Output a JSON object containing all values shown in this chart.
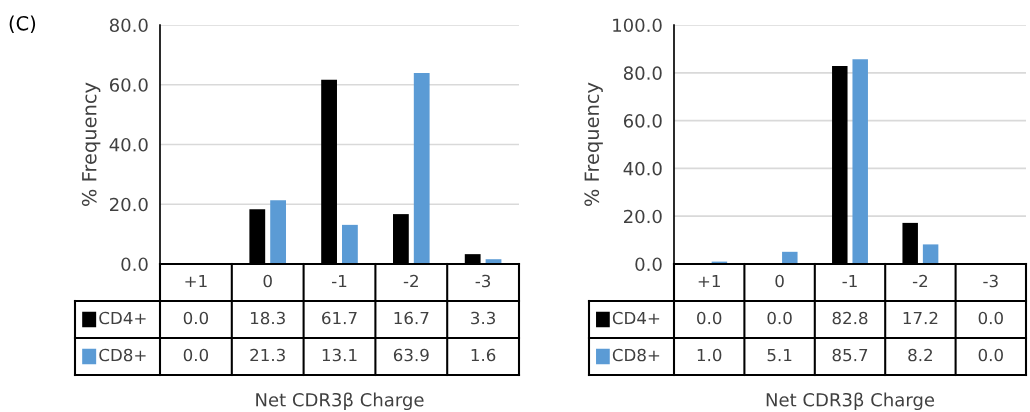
{
  "chart_data": [
    {
      "type": "bar",
      "ylabel": "% Frequency",
      "xlabel": "Net CDR3β Charge",
      "annotations": [
        "(C)"
      ],
      "categories": [
        "+1",
        "0",
        "-1",
        "-2",
        "-3"
      ],
      "ylim": [
        0,
        80
      ],
      "yticks": [
        {
          "value": 0,
          "label": "0.0"
        },
        {
          "value": 20,
          "label": "20.0"
        },
        {
          "value": 40,
          "label": "40.0"
        },
        {
          "value": 60,
          "label": "60.0"
        },
        {
          "value": 80,
          "label": "80.0"
        }
      ],
      "grid": "y",
      "legend": "bottom left",
      "series": [
        {
          "name": "CD4+",
          "color": "#000000",
          "values": [
            0.0,
            18.3,
            61.7,
            16.7,
            3.3
          ],
          "value_labels": [
            "0.0",
            "18.3",
            "61.7",
            "16.7",
            "3.3"
          ]
        },
        {
          "name": "CD8+",
          "color": "#5b9bd5",
          "values": [
            0.0,
            21.3,
            13.1,
            63.9,
            1.6
          ],
          "value_labels": [
            "0.0",
            "21.3",
            "13.1",
            "63.9",
            "1.6"
          ]
        }
      ]
    },
    {
      "type": "bar",
      "ylabel": "% Frequency",
      "xlabel": "Net CDR3β Charge",
      "categories": [
        "+1",
        "0",
        "-1",
        "-2",
        "-3"
      ],
      "ylim": [
        0,
        100
      ],
      "yticks": [
        {
          "value": 0,
          "label": "0.0"
        },
        {
          "value": 20,
          "label": "20.0"
        },
        {
          "value": 40,
          "label": "40.0"
        },
        {
          "value": 60,
          "label": "60.0"
        },
        {
          "value": 80,
          "label": "80.0"
        },
        {
          "value": 100,
          "label": "100.0"
        }
      ],
      "grid": "y",
      "legend": "bottom left",
      "series": [
        {
          "name": "CD4+",
          "color": "#000000",
          "values": [
            0.0,
            0.0,
            82.8,
            17.2,
            0.0
          ],
          "value_labels": [
            "0.0",
            "0.0",
            "82.8",
            "17.2",
            "0.0"
          ]
        },
        {
          "name": "CD8+",
          "color": "#5b9bd5",
          "values": [
            1.0,
            5.1,
            85.7,
            8.2,
            0.0
          ],
          "value_labels": [
            "1.0",
            "5.1",
            "85.7",
            "8.2",
            "0.0"
          ]
        }
      ]
    }
  ]
}
